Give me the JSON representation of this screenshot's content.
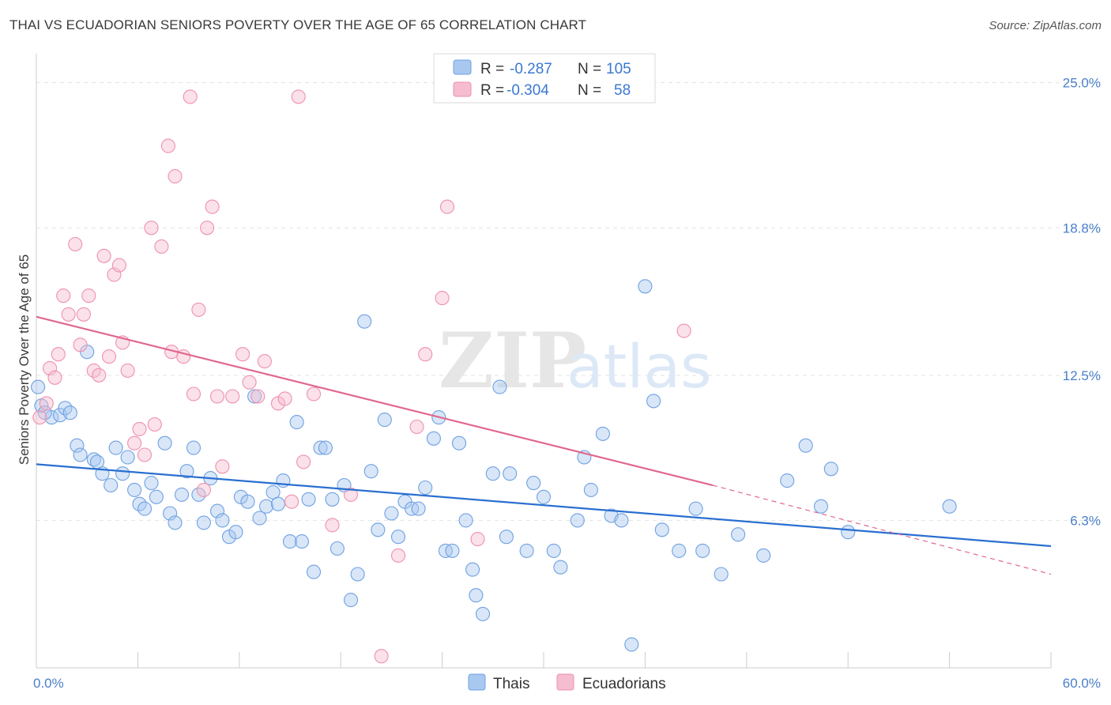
{
  "header": {
    "title": "THAI VS ECUADORIAN SENIORS POVERTY OVER THE AGE OF 65 CORRELATION CHART",
    "source": "Source: ZipAtlas.com"
  },
  "watermark": {
    "zip": "ZIP",
    "atlas": "atlas"
  },
  "legend": {
    "rows": [
      {
        "r_label": "R =",
        "r_value": "-0.287",
        "n_label": "N =",
        "n_value": "105",
        "color": "#a9c8f0"
      },
      {
        "r_label": "R =",
        "r_value": "-0.304",
        "n_label": "N =",
        "n_value": "58",
        "color": "#f6bccf"
      }
    ]
  },
  "bottom_legend": [
    {
      "label": "Thais",
      "color": "#a9c8f0"
    },
    {
      "label": "Ecuadorians",
      "color": "#f6bccf"
    }
  ],
  "chart_data": {
    "type": "scatter",
    "title": "THAI VS ECUADORIAN SENIORS POVERTY OVER THE AGE OF 65 CORRELATION CHART",
    "ylabel": "Seniors Poverty Over the Age of 65",
    "xlabel": "",
    "xlim": [
      0,
      60
    ],
    "ylim": [
      0,
      25.9
    ],
    "x_tick_labels": [
      "0.0%",
      "60.0%"
    ],
    "y_ticks": [
      6.3,
      12.5,
      18.8,
      25.0
    ],
    "y_tick_labels": [
      "6.3%",
      "12.5%",
      "18.8%",
      "25.0%"
    ],
    "grid": true,
    "legend_position": "top-center",
    "series": [
      {
        "name": "Thais",
        "color": "#6fa1e2",
        "fill": "#a9c8f0",
        "trend": {
          "x": [
            0,
            60
          ],
          "y": [
            8.7,
            5.2
          ]
        },
        "points": [
          [
            0.3,
            11.2
          ],
          [
            0.9,
            10.7
          ],
          [
            1.4,
            10.8
          ],
          [
            1.7,
            11.1
          ],
          [
            2.0,
            10.9
          ],
          [
            2.4,
            9.5
          ],
          [
            2.6,
            9.1
          ],
          [
            3.0,
            13.5
          ],
          [
            3.4,
            8.9
          ],
          [
            3.6,
            8.8
          ],
          [
            3.9,
            8.3
          ],
          [
            4.4,
            7.8
          ],
          [
            4.7,
            9.4
          ],
          [
            5.1,
            8.3
          ],
          [
            5.4,
            9.0
          ],
          [
            5.8,
            7.6
          ],
          [
            6.1,
            7.0
          ],
          [
            6.4,
            6.8
          ],
          [
            6.8,
            7.9
          ],
          [
            7.1,
            7.3
          ],
          [
            7.6,
            9.6
          ],
          [
            7.9,
            6.6
          ],
          [
            8.2,
            6.2
          ],
          [
            8.6,
            7.4
          ],
          [
            8.9,
            8.4
          ],
          [
            9.3,
            9.4
          ],
          [
            9.6,
            7.4
          ],
          [
            9.9,
            6.2
          ],
          [
            10.3,
            8.1
          ],
          [
            10.7,
            6.7
          ],
          [
            11.0,
            6.3
          ],
          [
            11.4,
            5.6
          ],
          [
            11.8,
            5.8
          ],
          [
            12.1,
            7.3
          ],
          [
            12.5,
            7.1
          ],
          [
            12.9,
            11.6
          ],
          [
            13.2,
            6.4
          ],
          [
            13.6,
            6.9
          ],
          [
            14.0,
            7.5
          ],
          [
            14.3,
            7.0
          ],
          [
            14.6,
            8.0
          ],
          [
            15.0,
            5.4
          ],
          [
            15.4,
            10.5
          ],
          [
            15.7,
            5.4
          ],
          [
            16.1,
            7.2
          ],
          [
            16.4,
            4.1
          ],
          [
            16.8,
            9.4
          ],
          [
            17.1,
            9.4
          ],
          [
            17.5,
            7.2
          ],
          [
            17.8,
            5.1
          ],
          [
            18.2,
            7.8
          ],
          [
            18.6,
            2.9
          ],
          [
            19.0,
            4.0
          ],
          [
            19.4,
            14.8
          ],
          [
            19.8,
            8.4
          ],
          [
            20.2,
            5.9
          ],
          [
            20.6,
            10.6
          ],
          [
            21.0,
            6.6
          ],
          [
            21.4,
            5.6
          ],
          [
            21.8,
            7.1
          ],
          [
            22.2,
            6.8
          ],
          [
            22.6,
            6.8
          ],
          [
            23.0,
            7.7
          ],
          [
            23.5,
            9.8
          ],
          [
            23.8,
            10.7
          ],
          [
            24.2,
            5.0
          ],
          [
            24.6,
            5.0
          ],
          [
            25.0,
            9.6
          ],
          [
            25.4,
            6.3
          ],
          [
            25.8,
            4.2
          ],
          [
            26.0,
            3.1
          ],
          [
            26.4,
            2.3
          ],
          [
            27.0,
            8.3
          ],
          [
            27.4,
            12.0
          ],
          [
            27.8,
            5.6
          ],
          [
            28.0,
            8.3
          ],
          [
            29.0,
            5.0
          ],
          [
            29.4,
            7.9
          ],
          [
            30.0,
            7.3
          ],
          [
            30.6,
            5.0
          ],
          [
            31.0,
            4.3
          ],
          [
            32.0,
            6.3
          ],
          [
            32.4,
            9.0
          ],
          [
            32.8,
            7.6
          ],
          [
            33.5,
            10.0
          ],
          [
            34.0,
            6.5
          ],
          [
            34.6,
            6.3
          ],
          [
            35.2,
            1.0
          ],
          [
            36.0,
            16.3
          ],
          [
            36.5,
            11.4
          ],
          [
            37.0,
            5.9
          ],
          [
            38.0,
            5.0
          ],
          [
            39.0,
            6.8
          ],
          [
            39.4,
            5.0
          ],
          [
            40.5,
            4.0
          ],
          [
            41.5,
            5.7
          ],
          [
            43.0,
            4.8
          ],
          [
            44.4,
            8.0
          ],
          [
            45.5,
            9.5
          ],
          [
            46.4,
            6.9
          ],
          [
            47.0,
            8.5
          ],
          [
            48.0,
            5.8
          ],
          [
            54.0,
            6.9
          ],
          [
            0.1,
            12.0
          ],
          [
            0.5,
            10.9
          ]
        ]
      },
      {
        "name": "Ecuadorians",
        "color": "#ee91ae",
        "fill": "#f6bccf",
        "trend": {
          "x": [
            0,
            40
          ],
          "y": [
            15.0,
            7.8
          ]
        },
        "trend_ext": {
          "x": [
            40,
            60
          ],
          "y": [
            7.8,
            4.0
          ]
        },
        "points": [
          [
            0.2,
            10.7
          ],
          [
            0.6,
            11.3
          ],
          [
            0.8,
            12.8
          ],
          [
            1.1,
            12.4
          ],
          [
            1.3,
            13.4
          ],
          [
            1.6,
            15.9
          ],
          [
            1.9,
            15.1
          ],
          [
            2.3,
            18.1
          ],
          [
            2.6,
            13.8
          ],
          [
            2.8,
            15.1
          ],
          [
            3.1,
            15.9
          ],
          [
            3.4,
            12.7
          ],
          [
            3.7,
            12.5
          ],
          [
            4.0,
            17.6
          ],
          [
            4.3,
            13.3
          ],
          [
            4.6,
            16.8
          ],
          [
            4.9,
            17.2
          ],
          [
            5.1,
            13.9
          ],
          [
            5.4,
            12.7
          ],
          [
            5.8,
            9.6
          ],
          [
            6.1,
            10.2
          ],
          [
            6.4,
            9.1
          ],
          [
            6.8,
            18.8
          ],
          [
            7.0,
            10.4
          ],
          [
            7.4,
            18.0
          ],
          [
            7.8,
            22.3
          ],
          [
            8.0,
            13.5
          ],
          [
            8.2,
            21.0
          ],
          [
            8.7,
            13.3
          ],
          [
            9.1,
            24.4
          ],
          [
            9.3,
            11.7
          ],
          [
            9.6,
            15.3
          ],
          [
            9.9,
            7.6
          ],
          [
            10.1,
            18.8
          ],
          [
            10.4,
            19.7
          ],
          [
            10.7,
            11.6
          ],
          [
            11.0,
            8.6
          ],
          [
            11.6,
            11.6
          ],
          [
            12.2,
            13.4
          ],
          [
            12.6,
            12.2
          ],
          [
            13.1,
            11.6
          ],
          [
            13.5,
            13.1
          ],
          [
            14.3,
            11.3
          ],
          [
            14.7,
            11.5
          ],
          [
            15.1,
            7.1
          ],
          [
            15.5,
            24.4
          ],
          [
            15.8,
            8.8
          ],
          [
            16.4,
            11.7
          ],
          [
            17.5,
            6.1
          ],
          [
            18.6,
            7.4
          ],
          [
            20.4,
            0.5
          ],
          [
            21.4,
            4.8
          ],
          [
            22.5,
            10.3
          ],
          [
            23.0,
            13.4
          ],
          [
            24.0,
            15.8
          ],
          [
            24.3,
            19.7
          ],
          [
            26.1,
            5.5
          ],
          [
            38.3,
            14.4
          ]
        ]
      }
    ]
  }
}
